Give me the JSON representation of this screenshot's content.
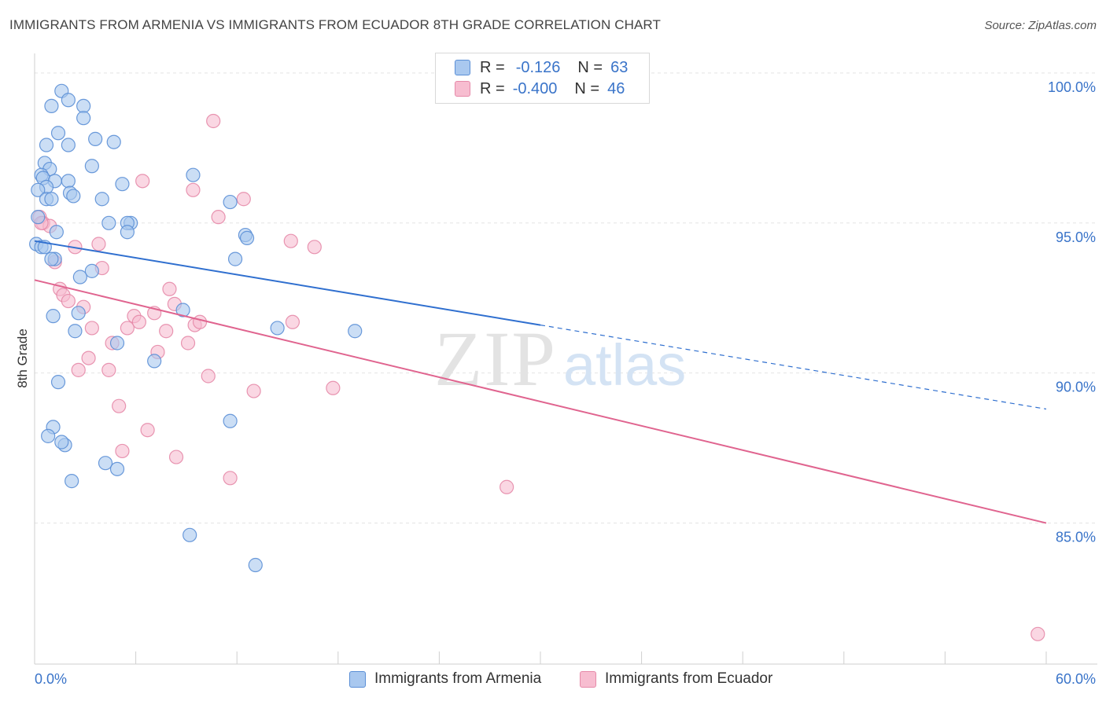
{
  "title": "IMMIGRANTS FROM ARMENIA VS IMMIGRANTS FROM ECUADOR 8TH GRADE CORRELATION CHART",
  "source": "Source: ZipAtlas.com",
  "watermark": {
    "zip": "ZIP",
    "atlas": "atlas"
  },
  "legend": {
    "armenia": {
      "r_label": "R =",
      "r_value": "-0.126",
      "n_label": "N =",
      "n_value": "63"
    },
    "ecuador": {
      "r_label": "R =",
      "r_value": "-0.400",
      "n_label": "N =",
      "n_value": "46"
    }
  },
  "colors": {
    "armenia_fill": "#a9c8ef",
    "armenia_stroke": "#5b8fd6",
    "armenia_line": "#2f6fcf",
    "ecuador_fill": "#f7bdd0",
    "ecuador_stroke": "#e68aa9",
    "ecuador_line": "#e0648f",
    "tick_label": "#3a74c9",
    "grid": "#e3e3e3"
  },
  "chart_data": {
    "type": "scatter",
    "title": "IMMIGRANTS FROM ARMENIA VS IMMIGRANTS FROM ECUADOR 8TH GRADE CORRELATION CHART",
    "xlabel": "",
    "ylabel": "8th Grade",
    "xlim": [
      0,
      60
    ],
    "ylim": [
      80.3,
      100.6
    ],
    "x_tick_labels": [
      "0.0%",
      "60.0%"
    ],
    "y_ticks": [
      85,
      90,
      95,
      100
    ],
    "y_tick_labels": [
      "85.0%",
      "90.0%",
      "95.0%",
      "100.0%"
    ],
    "grid": true,
    "legend_position": "bottom",
    "series": [
      {
        "name": "Immigrants from Armenia",
        "color": "#a9c8ef",
        "points": [
          [
            1.6,
            99.4
          ],
          [
            2.0,
            99.1
          ],
          [
            1.0,
            98.9
          ],
          [
            2.9,
            98.9
          ],
          [
            2.9,
            98.5
          ],
          [
            1.4,
            98.0
          ],
          [
            3.6,
            97.8
          ],
          [
            0.7,
            97.6
          ],
          [
            2.0,
            97.6
          ],
          [
            4.7,
            97.7
          ],
          [
            0.6,
            97.0
          ],
          [
            3.4,
            96.9
          ],
          [
            0.9,
            96.8
          ],
          [
            0.4,
            96.6
          ],
          [
            0.5,
            96.5
          ],
          [
            2.0,
            96.4
          ],
          [
            1.2,
            96.4
          ],
          [
            0.7,
            96.2
          ],
          [
            5.2,
            96.3
          ],
          [
            9.4,
            96.6
          ],
          [
            0.2,
            96.1
          ],
          [
            2.1,
            96.0
          ],
          [
            2.3,
            95.9
          ],
          [
            4.0,
            95.8
          ],
          [
            0.7,
            95.8
          ],
          [
            1.0,
            95.8
          ],
          [
            11.6,
            95.7
          ],
          [
            0.2,
            95.2
          ],
          [
            4.4,
            95.0
          ],
          [
            5.7,
            95.0
          ],
          [
            5.5,
            95.0
          ],
          [
            5.5,
            94.7
          ],
          [
            1.3,
            94.7
          ],
          [
            12.5,
            94.6
          ],
          [
            12.6,
            94.5
          ],
          [
            0.1,
            94.3
          ],
          [
            0.4,
            94.2
          ],
          [
            0.6,
            94.2
          ],
          [
            11.9,
            93.8
          ],
          [
            1.2,
            93.8
          ],
          [
            3.4,
            93.4
          ],
          [
            2.7,
            93.2
          ],
          [
            8.8,
            92.1
          ],
          [
            2.6,
            92.0
          ],
          [
            1.1,
            91.9
          ],
          [
            14.4,
            91.5
          ],
          [
            19.0,
            91.4
          ],
          [
            2.4,
            91.4
          ],
          [
            4.9,
            91.0
          ],
          [
            7.1,
            90.4
          ],
          [
            1.4,
            89.7
          ],
          [
            11.6,
            88.4
          ],
          [
            1.1,
            88.2
          ],
          [
            0.8,
            87.9
          ],
          [
            1.8,
            87.6
          ],
          [
            1.6,
            87.7
          ],
          [
            4.2,
            87.0
          ],
          [
            4.9,
            86.8
          ],
          [
            2.2,
            86.4
          ],
          [
            9.2,
            84.6
          ],
          [
            13.1,
            83.6
          ],
          [
            29.0,
            100.1
          ],
          [
            1.0,
            93.8
          ]
        ],
        "trend": {
          "x": [
            0,
            30
          ],
          "y": [
            94.4,
            91.6
          ],
          "dashed_extension": {
            "x": [
              30,
              60
            ],
            "y": [
              91.6,
              88.8
            ]
          }
        }
      },
      {
        "name": "Immigrants from Ecuador",
        "color": "#f7bdd0",
        "points": [
          [
            10.6,
            98.4
          ],
          [
            6.4,
            96.4
          ],
          [
            9.4,
            96.1
          ],
          [
            12.4,
            95.8
          ],
          [
            10.9,
            95.2
          ],
          [
            0.3,
            95.2
          ],
          [
            0.5,
            95.0
          ],
          [
            0.9,
            94.9
          ],
          [
            15.2,
            94.4
          ],
          [
            16.6,
            94.2
          ],
          [
            3.8,
            94.3
          ],
          [
            2.4,
            94.2
          ],
          [
            1.2,
            93.7
          ],
          [
            4.0,
            93.5
          ],
          [
            8.0,
            92.8
          ],
          [
            1.5,
            92.8
          ],
          [
            1.7,
            92.6
          ],
          [
            2.0,
            92.4
          ],
          [
            2.9,
            92.2
          ],
          [
            8.3,
            92.3
          ],
          [
            5.9,
            91.9
          ],
          [
            7.1,
            92.0
          ],
          [
            6.2,
            91.7
          ],
          [
            9.5,
            91.6
          ],
          [
            9.8,
            91.7
          ],
          [
            15.3,
            91.7
          ],
          [
            5.5,
            91.5
          ],
          [
            3.4,
            91.5
          ],
          [
            7.8,
            91.4
          ],
          [
            4.6,
            91.0
          ],
          [
            9.1,
            91.0
          ],
          [
            7.3,
            90.7
          ],
          [
            3.2,
            90.5
          ],
          [
            2.6,
            90.1
          ],
          [
            4.4,
            90.1
          ],
          [
            10.3,
            89.9
          ],
          [
            13.0,
            89.4
          ],
          [
            17.7,
            89.5
          ],
          [
            5.0,
            88.9
          ],
          [
            6.7,
            88.1
          ],
          [
            5.2,
            87.4
          ],
          [
            8.4,
            87.2
          ],
          [
            11.6,
            86.5
          ],
          [
            28.0,
            86.2
          ],
          [
            59.5,
            81.3
          ],
          [
            0.4,
            95.0
          ]
        ],
        "trend": {
          "x": [
            0,
            60
          ],
          "y": [
            93.1,
            85.0
          ]
        }
      }
    ]
  }
}
